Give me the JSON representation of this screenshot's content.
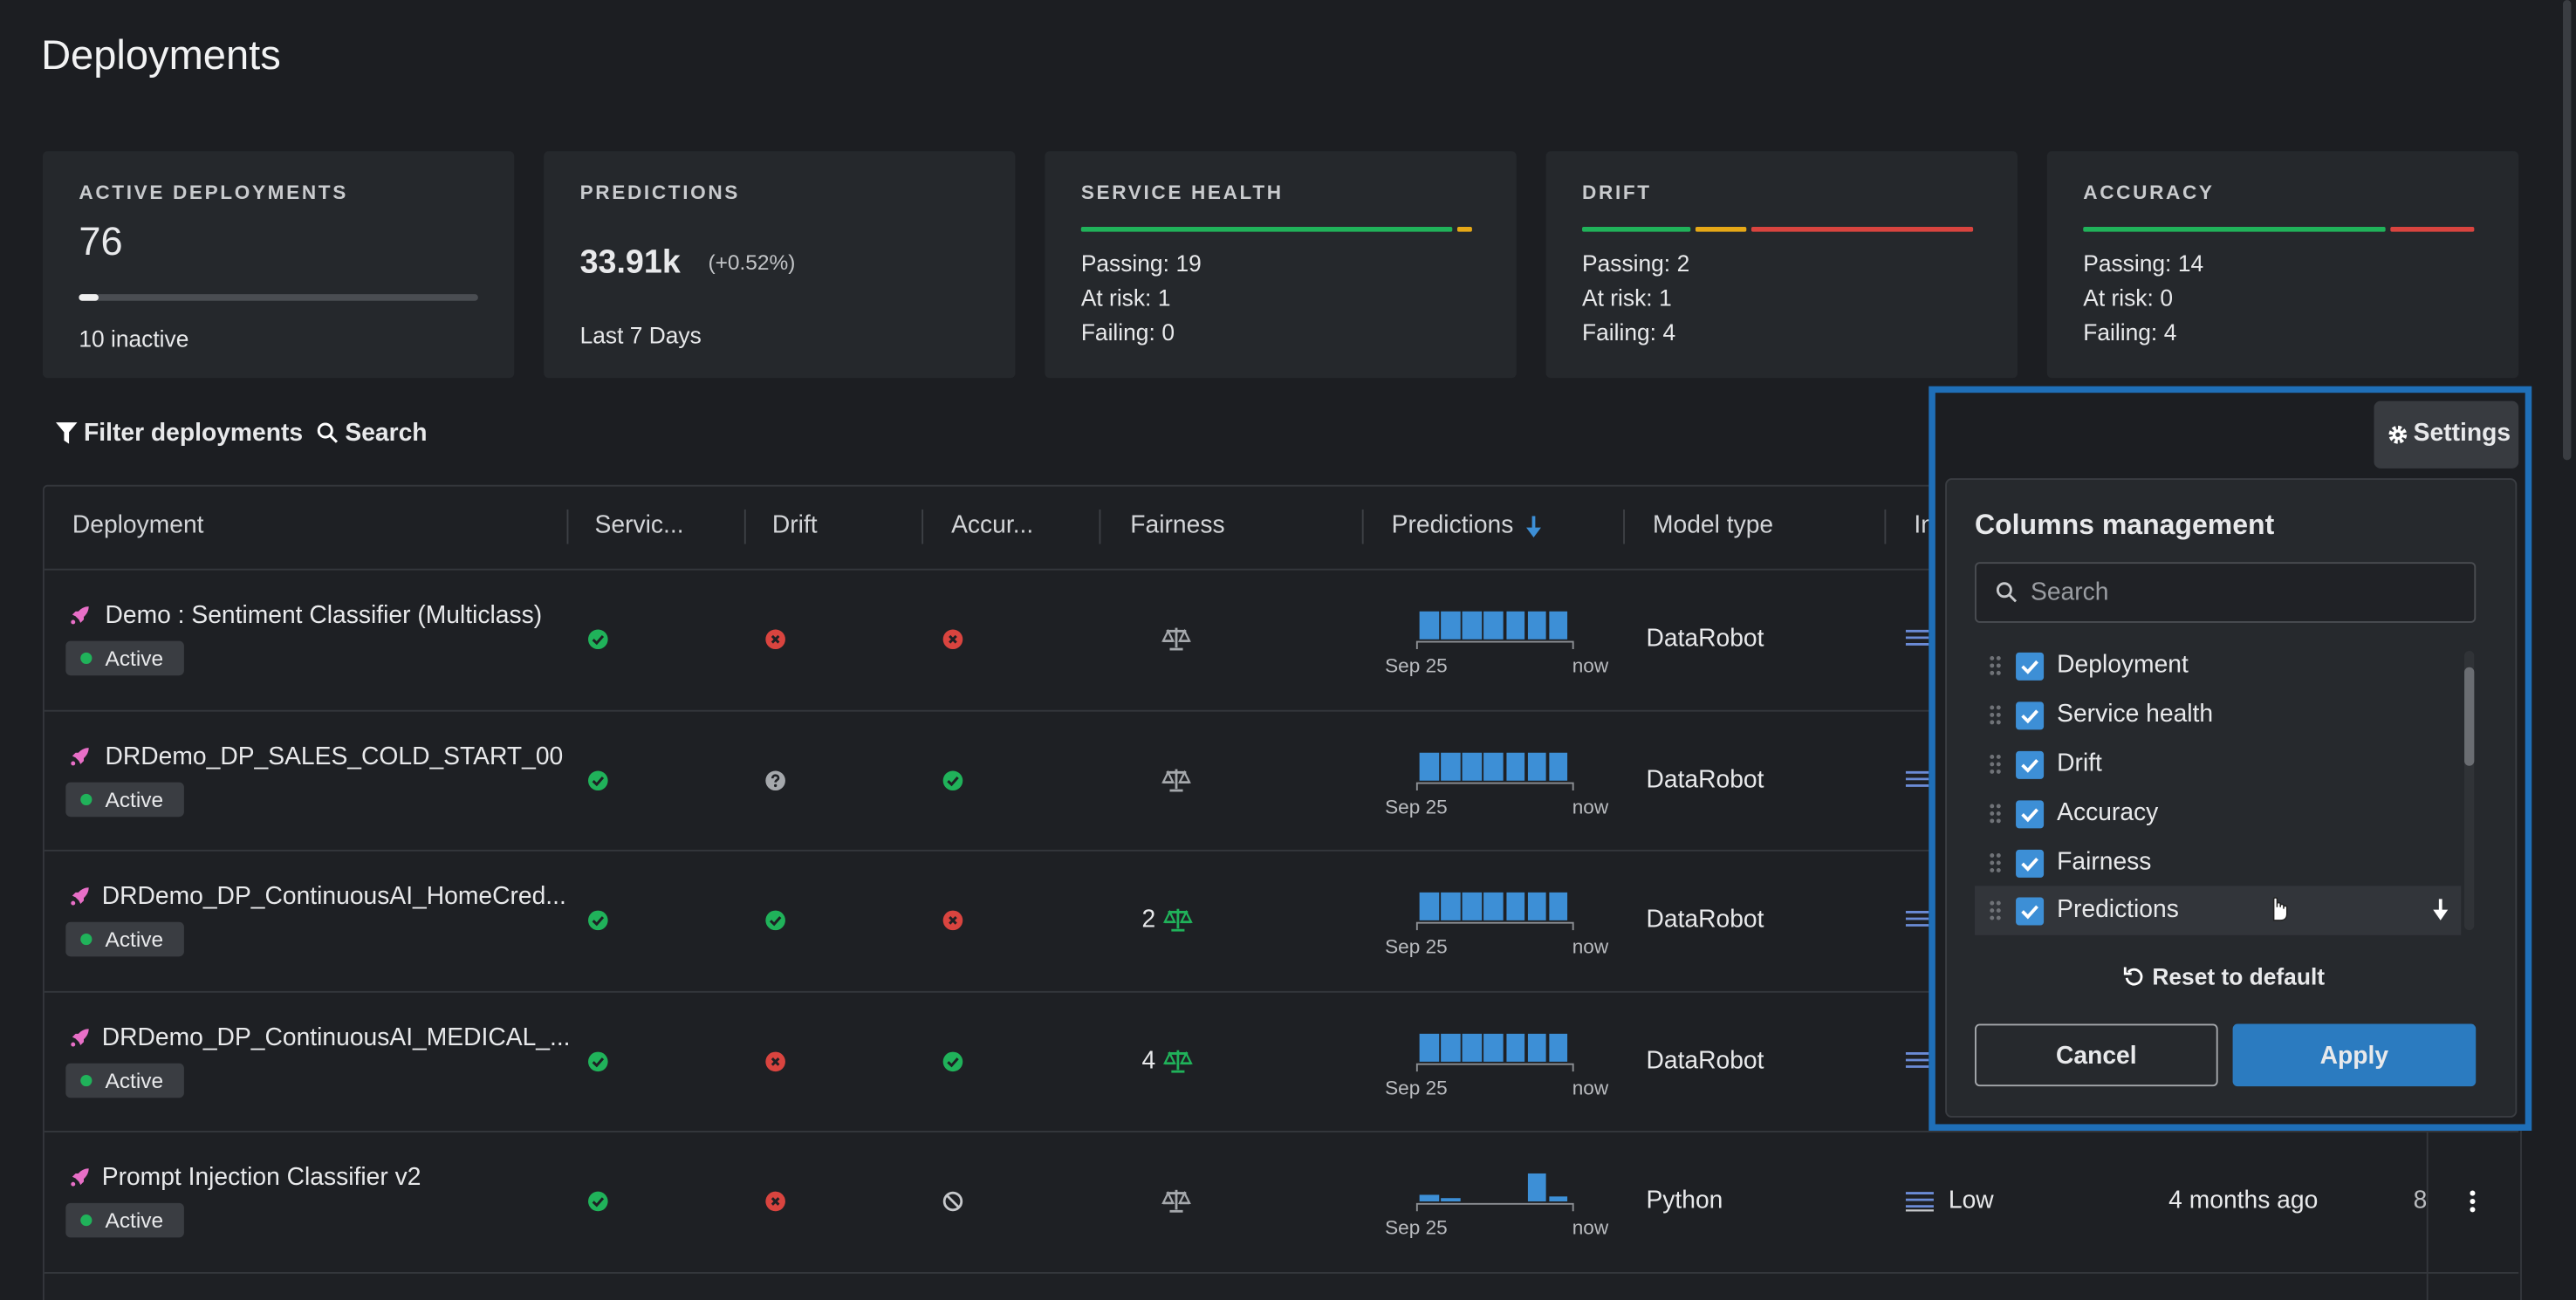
{
  "header": {
    "title": "Deployments"
  },
  "summary": {
    "active": {
      "label": "ACTIVE DEPLOYMENTS",
      "value": 76,
      "inactive_text": "10 inactive"
    },
    "predictions": {
      "label": "PREDICTIONS",
      "value": "33.91k",
      "change": "(+0.52%)",
      "period": "Last 7 Days"
    },
    "health": [
      {
        "label": "SERVICE HEALTH",
        "rows": [
          {
            "label": "Passing:",
            "value": 19,
            "color": "#20b25a"
          },
          {
            "label": "At risk:",
            "value": 1,
            "color": "#e6a817"
          },
          {
            "label": "Failing:",
            "value": 0,
            "color": "#d9443f"
          }
        ]
      },
      {
        "label": "DRIFT",
        "rows": [
          {
            "label": "Passing:",
            "value": 2,
            "color": "#20b25a"
          },
          {
            "label": "At risk:",
            "value": 1,
            "color": "#e6a817"
          },
          {
            "label": "Failing:",
            "value": 4,
            "color": "#d9443f"
          }
        ]
      },
      {
        "label": "ACCURACY",
        "rows": [
          {
            "label": "Passing:",
            "value": 14,
            "color": "#20b25a"
          },
          {
            "label": "At risk:",
            "value": 0,
            "color": "#e6a817"
          },
          {
            "label": "Failing:",
            "value": 4,
            "color": "#d9443f"
          }
        ]
      }
    ]
  },
  "toolbar": {
    "filter": "Filter deployments",
    "search": "Search"
  },
  "table": {
    "columns": [
      "Deployment",
      "Servic...",
      "Drift",
      "Accur...",
      "Fairness",
      "Predictions",
      "Model type",
      "In"
    ],
    "sort_column": 5,
    "rows": [
      {
        "name": "Demo : Sentiment Classifier (Multiclass)",
        "status": "Active",
        "service": "pass",
        "drift": "fail",
        "accuracy": "fail",
        "fairness": null,
        "predictions": [
          10,
          10,
          10,
          10,
          10,
          10,
          10
        ],
        "from": "Sep 25",
        "to": "now",
        "model_type": "DataRobot"
      },
      {
        "name": "DRDemo_DP_SALES_COLD_START_00",
        "status": "Active",
        "service": "pass",
        "drift": "unknown",
        "accuracy": "pass",
        "fairness": null,
        "predictions": [
          10,
          10,
          10,
          10,
          10,
          10,
          10
        ],
        "from": "Sep 25",
        "to": "now",
        "model_type": "DataRobot"
      },
      {
        "name": "DRDemo_DP_ContinuousAI_HomeCred...",
        "status": "Active",
        "service": "pass",
        "drift": "pass",
        "accuracy": "fail",
        "fairness": 2,
        "predictions": [
          10,
          10,
          10,
          10,
          10,
          10,
          10
        ],
        "from": "Sep 25",
        "to": "now",
        "model_type": "DataRobot"
      },
      {
        "name": "DRDemo_DP_ContinuousAI_MEDICAL_...",
        "status": "Active",
        "service": "pass",
        "drift": "fail",
        "accuracy": "pass",
        "fairness": 4,
        "predictions": [
          10,
          10,
          10,
          10,
          10,
          10,
          10
        ],
        "from": "Sep 25",
        "to": "now",
        "model_type": "DataRobot"
      },
      {
        "name": "Prompt Injection Classifier v2",
        "status": "Active",
        "service": "pass",
        "drift": "fail",
        "accuracy": "disabled",
        "fairness": null,
        "predictions": [
          4,
          2,
          0,
          0,
          0,
          17,
          3
        ],
        "from": "Sep 25",
        "to": "now",
        "model_type": "Python",
        "importance": "Low",
        "created": "4 months ago",
        "count": "8"
      }
    ]
  },
  "settings": {
    "button": "Settings",
    "title": "Columns management",
    "search_placeholder": "Search",
    "columns": [
      {
        "label": "Deployment",
        "checked": true
      },
      {
        "label": "Service health",
        "checked": true
      },
      {
        "label": "Drift",
        "checked": true
      },
      {
        "label": "Accuracy",
        "checked": true
      },
      {
        "label": "Fairness",
        "checked": true
      },
      {
        "label": "Predictions",
        "checked": true
      }
    ],
    "reset": "Reset to default",
    "cancel": "Cancel",
    "apply": "Apply"
  }
}
